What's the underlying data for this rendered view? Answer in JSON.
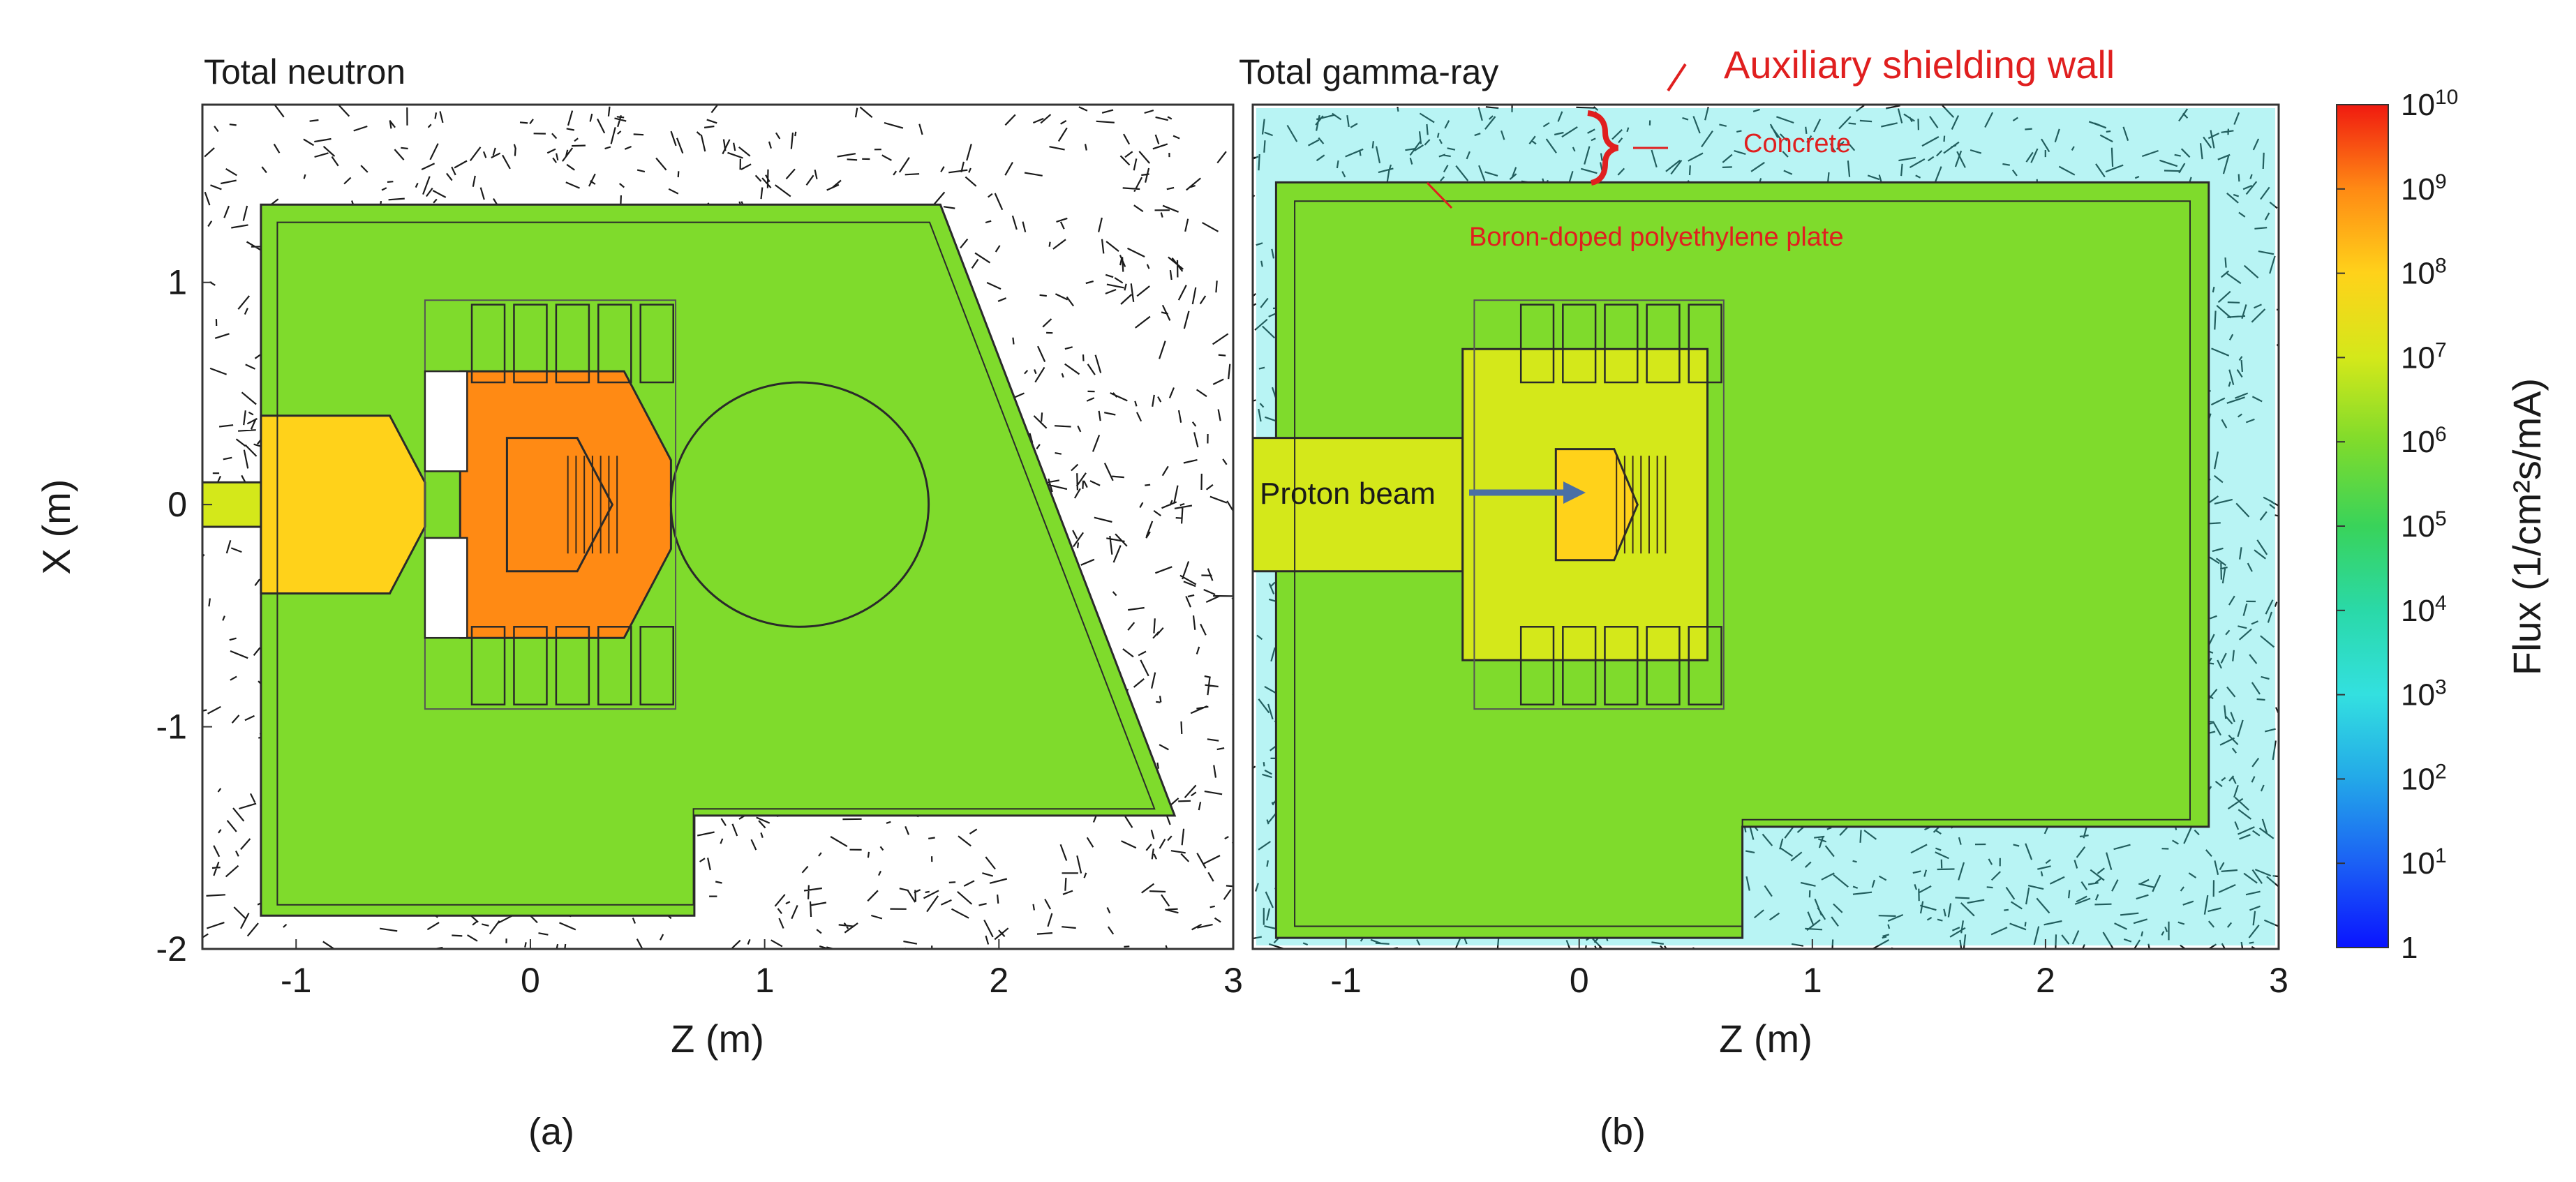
{
  "chart_data": [
    {
      "type": "heatmap",
      "title": "Total neutron",
      "xlabel": "Z (m)",
      "ylabel": "X (m)",
      "xlim": [
        -1.4,
        3.0
      ],
      "ylim": [
        -2.0,
        1.8
      ],
      "xticks": [
        "-1",
        "0",
        "1",
        "2",
        "3"
      ],
      "yticks": [
        "1",
        "0",
        "-1",
        "-2"
      ],
      "caption": "(a)",
      "regions": [
        {
          "name": "room",
          "flux": 1000000.0,
          "polygon": [
            [
              -1.15,
              1.35
            ],
            [
              1.75,
              1.35
            ],
            [
              2.75,
              -1.4
            ],
            [
              0.7,
              -1.4
            ],
            [
              0.7,
              -1.85
            ],
            [
              -1.15,
              -1.85
            ]
          ]
        },
        {
          "name": "beam-duct",
          "flux": 10000000.0,
          "polygon": [
            [
              -1.4,
              0.1
            ],
            [
              -0.55,
              0.1
            ],
            [
              -0.55,
              -0.1
            ],
            [
              -1.4,
              -0.1
            ]
          ]
        },
        {
          "name": "upstream-zone",
          "flux": 50000000.0,
          "polygon": [
            [
              -1.15,
              0.4
            ],
            [
              -0.6,
              0.4
            ],
            [
              -0.45,
              0.1
            ],
            [
              -0.45,
              -0.1
            ],
            [
              -0.6,
              -0.4
            ],
            [
              -1.15,
              -0.4
            ]
          ]
        },
        {
          "name": "target-moderator",
          "flux": 500000000.0,
          "polygon": [
            [
              -0.3,
              0.6
            ],
            [
              0.4,
              0.6
            ],
            [
              0.6,
              0.2
            ],
            [
              0.6,
              -0.2
            ],
            [
              0.4,
              -0.6
            ],
            [
              -0.3,
              -0.6
            ]
          ]
        },
        {
          "name": "target-core",
          "flux": 3000000000.0,
          "polygon": [
            [
              -0.1,
              0.3
            ],
            [
              0.2,
              0.3
            ],
            [
              0.35,
              0.0
            ],
            [
              0.2,
              -0.3
            ],
            [
              -0.1,
              -0.3
            ]
          ]
        },
        {
          "name": "downstream-bubble",
          "flux": 2000000.0,
          "circle": [
            1.15,
            0.0,
            0.55
          ]
        }
      ]
    },
    {
      "type": "heatmap",
      "title": "Total gamma-ray",
      "xlabel": "Z (m)",
      "ylabel": "",
      "xlim": [
        -1.4,
        3.0
      ],
      "ylim": [
        -2.0,
        1.8
      ],
      "xticks": [
        "-1",
        "0",
        "1",
        "2",
        "3"
      ],
      "caption": "(b)",
      "annotations": [
        "Auxiliary shielding wall",
        "Concrete",
        "Boron-doped polyethylene plate",
        "Proton beam"
      ],
      "regions": [
        {
          "name": "room",
          "flux": 1000000.0,
          "polygon": [
            [
              -1.3,
              1.45
            ],
            [
              2.7,
              1.45
            ],
            [
              2.7,
              -1.45
            ],
            [
              0.7,
              -1.45
            ],
            [
              0.7,
              -1.95
            ],
            [
              -1.3,
              -1.95
            ]
          ]
        },
        {
          "name": "beam-duct",
          "flux": 10000000.0,
          "polygon": [
            [
              -1.4,
              0.3
            ],
            [
              -0.5,
              0.3
            ],
            [
              -0.5,
              -0.3
            ],
            [
              -1.4,
              -0.3
            ]
          ]
        },
        {
          "name": "target-moderator",
          "flux": 30000000.0,
          "polygon": [
            [
              -0.5,
              0.7
            ],
            [
              0.55,
              0.7
            ],
            [
              0.55,
              -0.7
            ],
            [
              -0.5,
              -0.7
            ]
          ]
        },
        {
          "name": "target-core",
          "flux": 300000000.0,
          "polygon": [
            [
              -0.1,
              0.25
            ],
            [
              0.15,
              0.25
            ],
            [
              0.25,
              0.0
            ],
            [
              0.15,
              -0.25
            ],
            [
              -0.1,
              -0.25
            ]
          ]
        }
      ]
    }
  ],
  "colorbar": {
    "label": "Flux (1/cm²s/mA)",
    "scale": "log",
    "range": [
      1,
      10000000000.0
    ],
    "ticks": [
      {
        "base": "1",
        "exp": ""
      },
      {
        "base": "10",
        "exp": "1"
      },
      {
        "base": "10",
        "exp": "2"
      },
      {
        "base": "10",
        "exp": "3"
      },
      {
        "base": "10",
        "exp": "4"
      },
      {
        "base": "10",
        "exp": "5"
      },
      {
        "base": "10",
        "exp": "6"
      },
      {
        "base": "10",
        "exp": "7"
      },
      {
        "base": "10",
        "exp": "8"
      },
      {
        "base": "10",
        "exp": "9"
      },
      {
        "base": "10",
        "exp": "10"
      }
    ],
    "colors": [
      "#0a14ff",
      "#1b60f5",
      "#23a8e8",
      "#33e0e0",
      "#2ad9a8",
      "#39d35a",
      "#7fdb2c",
      "#d4e81a",
      "#ffd21a",
      "#ff8a14",
      "#f01a10"
    ]
  }
}
